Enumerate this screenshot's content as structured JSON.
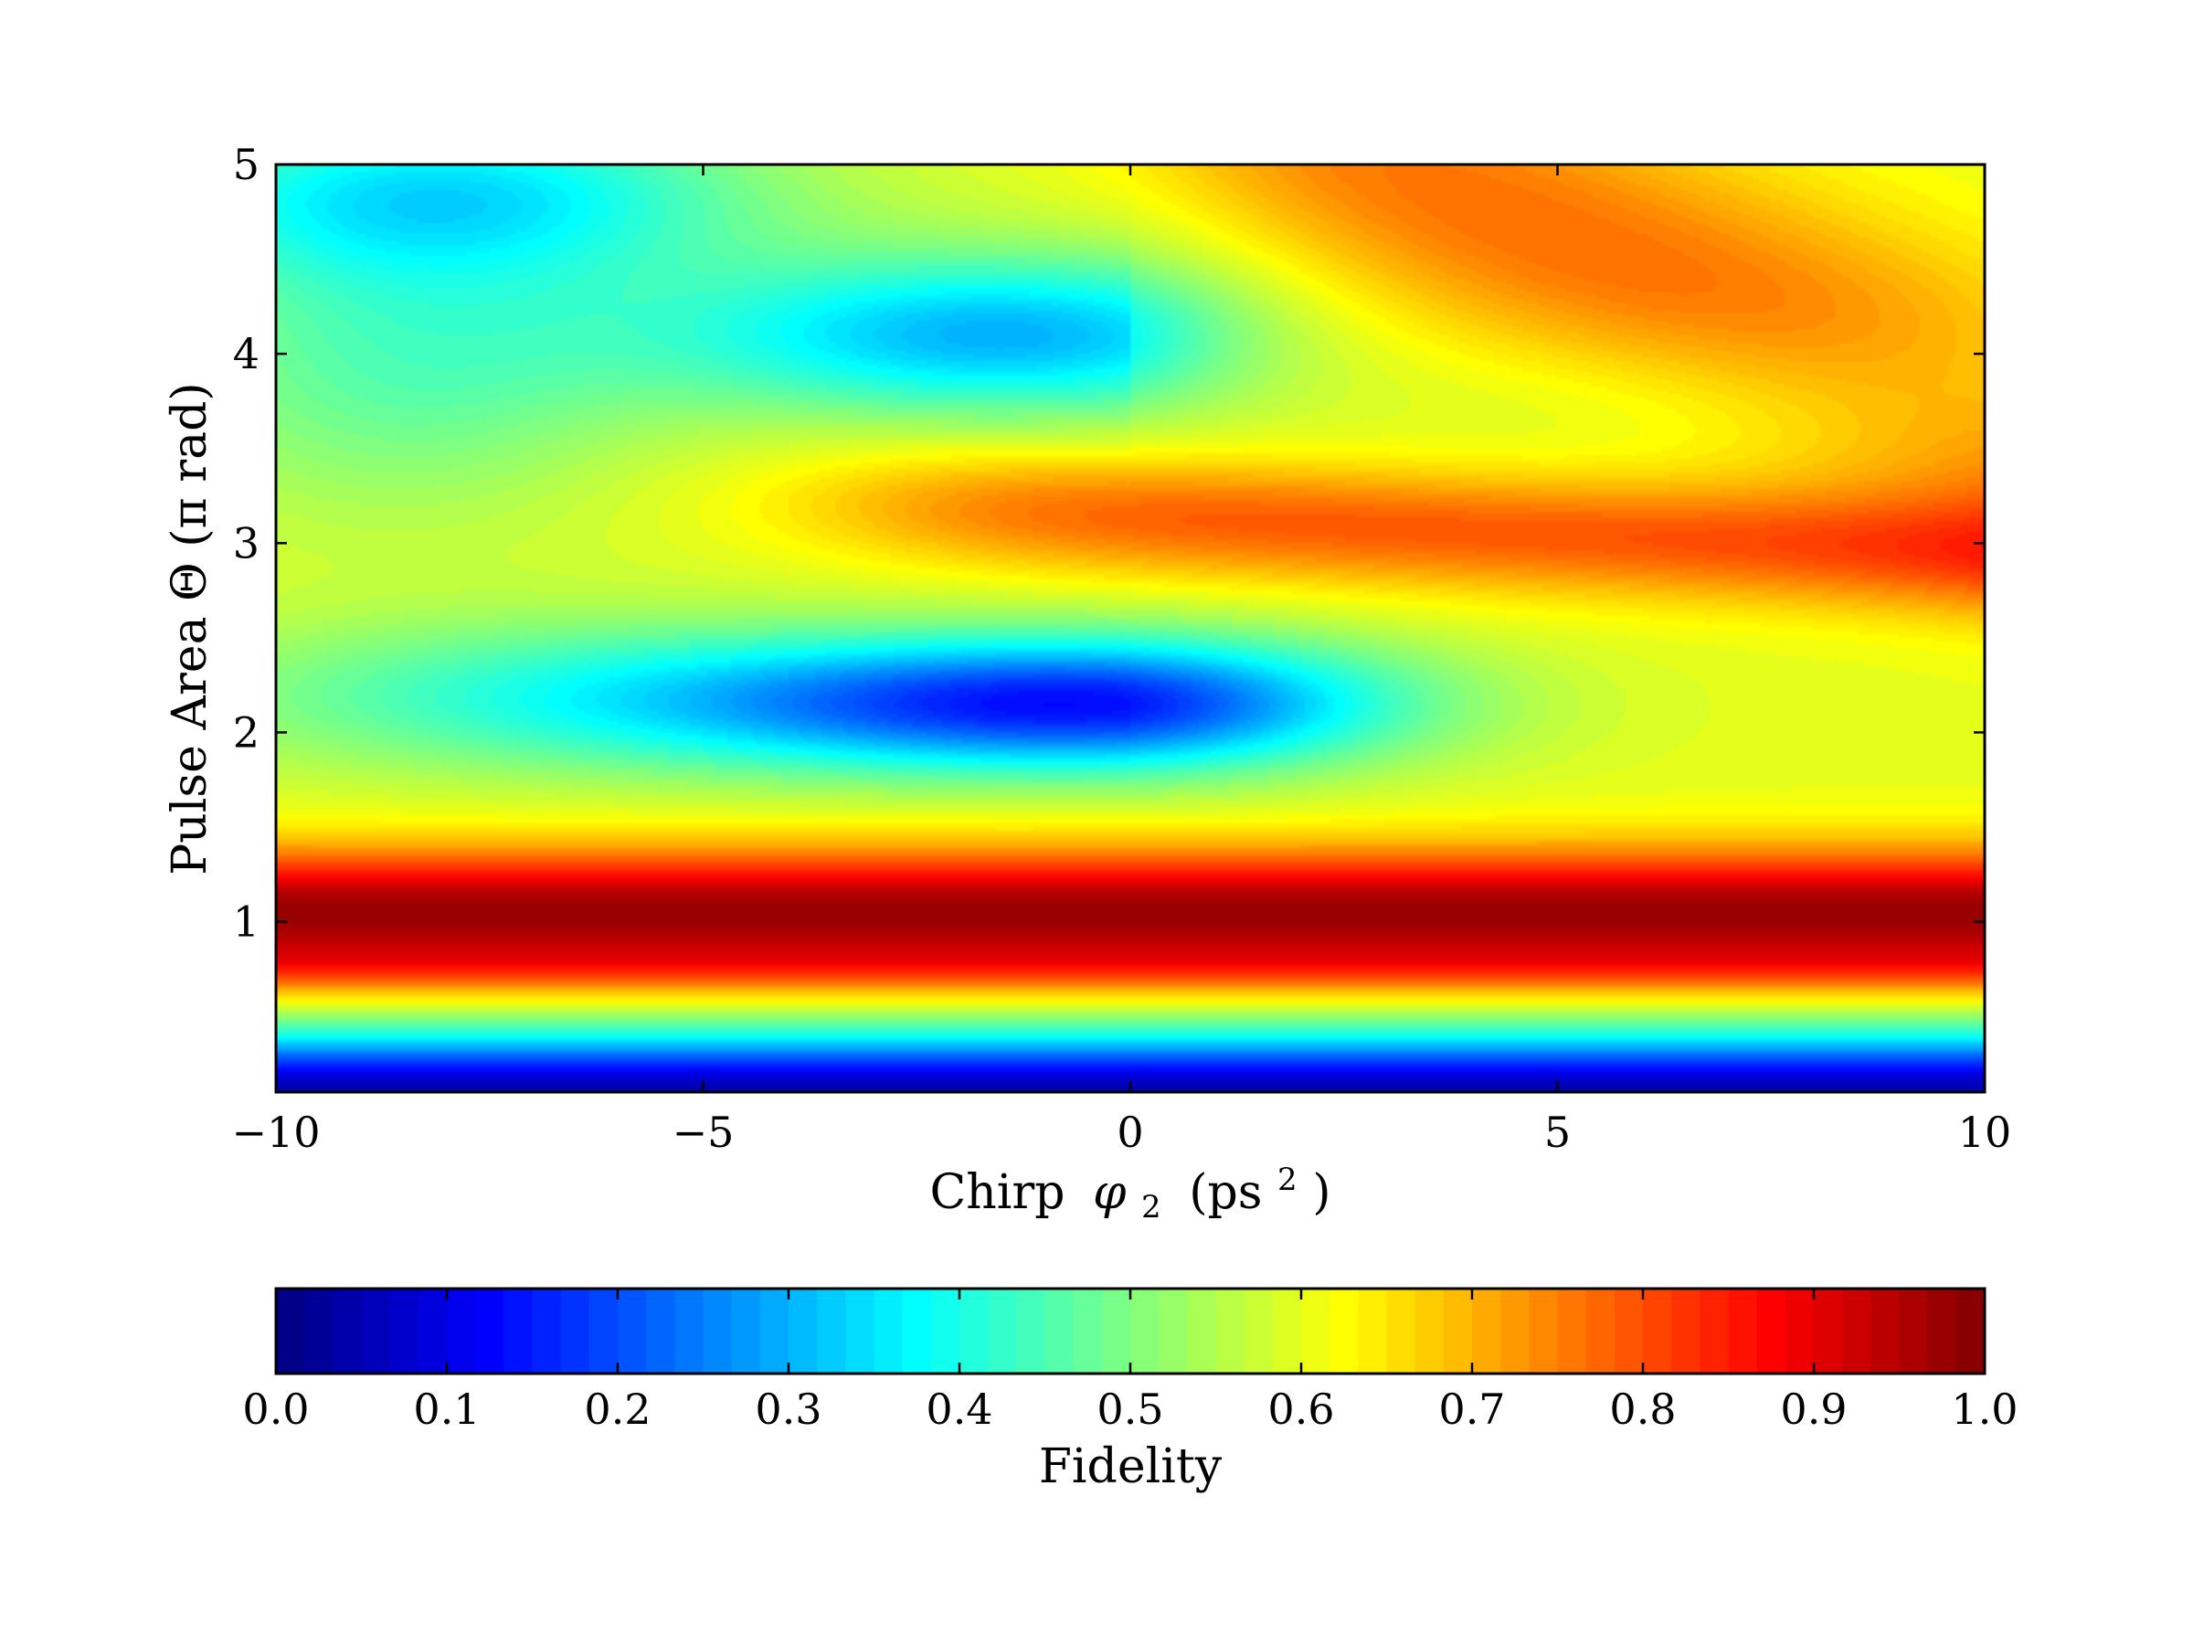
{
  "chart_data": {
    "type": "heatmap",
    "title": "",
    "xlabel": "Chirp",
    "xlabel_symbol": "φ",
    "xlabel_subscript": "2",
    "xlabel_unit_open": "(ps",
    "xlabel_unit_power": "2",
    "xlabel_unit_close": ")",
    "ylabel": "Pulse Area Θ (π rad)",
    "xlim": [
      -10,
      10
    ],
    "ylim": [
      0.1,
      5
    ],
    "x_ticks": [
      -10,
      -5,
      0,
      5,
      10
    ],
    "x_tick_labels": [
      "−10",
      "−5",
      "0",
      "5",
      "10"
    ],
    "y_ticks": [
      1,
      2,
      3,
      4,
      5
    ],
    "y_tick_labels": [
      "1",
      "2",
      "3",
      "4",
      "5"
    ],
    "colormap": "jet",
    "colorbar": {
      "label": "Fidelity",
      "range": [
        0.0,
        1.0
      ],
      "ticks": [
        0.0,
        0.1,
        0.2,
        0.3,
        0.4,
        0.5,
        0.6,
        0.7,
        0.8,
        0.9,
        1.0
      ],
      "tick_labels": [
        "0.0",
        "0.1",
        "0.2",
        "0.3",
        "0.4",
        "0.5",
        "0.6",
        "0.7",
        "0.8",
        "0.9",
        "1.0"
      ],
      "orientation": "horizontal",
      "placement": "below"
    },
    "grid": false,
    "field_features": [
      {
        "kind": "baseline",
        "theta": 0.1,
        "fidelity": 0.05
      },
      {
        "kind": "ridge",
        "theta": 1.05,
        "fidelity": 0.95,
        "extent": "full chirp range"
      },
      {
        "kind": "valley",
        "chirp": -0.5,
        "theta": 2.15,
        "fidelity": 0.18
      },
      {
        "kind": "ridge",
        "chirp_start": -3,
        "theta": 3.1,
        "fidelity": 0.8,
        "slope": -0.02
      },
      {
        "kind": "valley",
        "chirp": -1.5,
        "theta": 4.1,
        "fidelity": 0.3
      },
      {
        "kind": "valley",
        "chirp": -8,
        "theta": 4.85,
        "fidelity": 0.36
      },
      {
        "kind": "ridge",
        "chirp": 5,
        "theta": 4.6,
        "fidelity": 0.75
      }
    ]
  }
}
